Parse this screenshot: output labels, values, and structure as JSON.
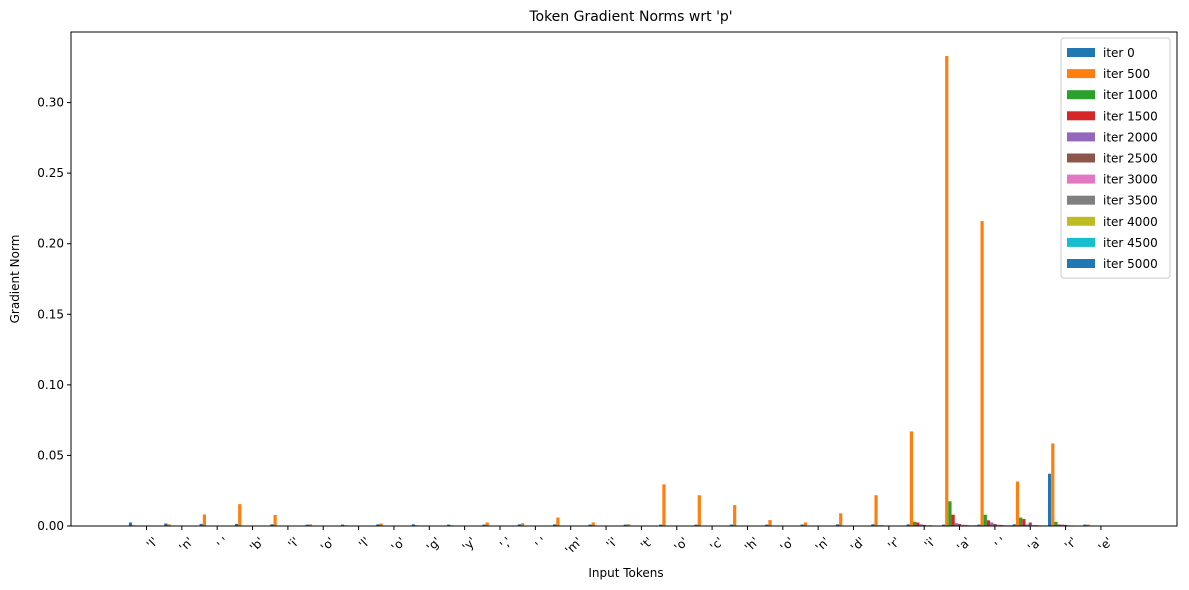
{
  "chart_data": {
    "type": "bar",
    "title": "Token Gradient Norms wrt 'p'",
    "xlabel": "Input Tokens",
    "ylabel": "Gradient Norm",
    "ylim": [
      0,
      0.35
    ],
    "yticks": [
      0.0,
      0.05,
      0.1,
      0.15,
      0.2,
      0.25,
      0.3
    ],
    "ytick_labels": [
      "0.00",
      "0.05",
      "0.10",
      "0.15",
      "0.20",
      "0.25",
      "0.30"
    ],
    "grid": false,
    "legend_position": "top-right",
    "categories": [
      "'I'",
      "'n'",
      "' '",
      "'b'",
      "'i'",
      "'o'",
      "'l'",
      "'o'",
      "'g'",
      "'y'",
      "','",
      "' '",
      "'m'",
      "'i'",
      "'t'",
      "'o'",
      "'c'",
      "'h'",
      "'o'",
      "'n'",
      "'d'",
      "'r'",
      "'i'",
      "'a'",
      "' '",
      "'a'",
      "'r'",
      "'e'"
    ],
    "series": [
      {
        "name": "iter 0",
        "color": "#1f77b4",
        "values": [
          0.0025,
          0.0018,
          0.0015,
          0.0015,
          0.0012,
          0.001,
          0.001,
          0.0012,
          0.0012,
          0.001,
          0.001,
          0.0012,
          0.0012,
          0.001,
          0.001,
          0.001,
          0.001,
          0.001,
          0.001,
          0.001,
          0.0012,
          0.0012,
          0.0012,
          0.001,
          0.001,
          0.0012,
          0.037,
          0.001
        ]
      },
      {
        "name": "iter 500",
        "color": "#ff7f0e",
        "values": [
          0.0005,
          0.0012,
          0.0082,
          0.0155,
          0.0078,
          0.0012,
          0.0005,
          0.0018,
          0.0005,
          0.0005,
          0.0025,
          0.002,
          0.006,
          0.0025,
          0.0012,
          0.0295,
          0.0218,
          0.0148,
          0.0042,
          0.0025,
          0.009,
          0.0218,
          0.067,
          0.333,
          0.216,
          0.0315,
          0.0585,
          0.001
        ]
      },
      {
        "name": "iter 1000",
        "color": "#2ca02c",
        "values": [
          0.0002,
          0.0002,
          0.0002,
          0.0002,
          0.0002,
          0.0002,
          0.0002,
          0.0002,
          0.0002,
          0.0002,
          0.0002,
          0.0002,
          0.0002,
          0.0002,
          0.0002,
          0.0002,
          0.0002,
          0.0002,
          0.0002,
          0.0002,
          0.0002,
          0.0005,
          0.003,
          0.0175,
          0.008,
          0.006,
          0.003,
          0.0002
        ]
      },
      {
        "name": "iter 1500",
        "color": "#d62728",
        "values": [
          0.0001,
          0.0001,
          0.0001,
          0.0001,
          0.0001,
          0.0001,
          0.0001,
          0.0001,
          0.0001,
          0.0001,
          0.0001,
          0.0001,
          0.0001,
          0.0001,
          0.0001,
          0.0001,
          0.0001,
          0.0001,
          0.0001,
          0.0001,
          0.0001,
          0.0005,
          0.0025,
          0.008,
          0.004,
          0.005,
          0.001,
          0.0001
        ]
      },
      {
        "name": "iter 2000",
        "color": "#9467bd",
        "values": [
          0.0001,
          0.0001,
          0.0001,
          0.0001,
          0.0001,
          0.0001,
          0.0001,
          0.0001,
          0.0001,
          0.0001,
          0.0001,
          0.0001,
          0.0001,
          0.0001,
          0.0001,
          0.0001,
          0.0001,
          0.0001,
          0.0001,
          0.0001,
          0.0001,
          0.0003,
          0.0012,
          0.002,
          0.0025,
          0.001,
          0.001,
          0.0001
        ]
      },
      {
        "name": "iter 2500",
        "color": "#8c564b",
        "values": [
          0.0001,
          0.0001,
          0.0001,
          0.0001,
          0.0001,
          0.0001,
          0.0001,
          0.0001,
          0.0001,
          0.0001,
          0.0001,
          0.0001,
          0.0001,
          0.0001,
          0.0001,
          0.0001,
          0.0001,
          0.0001,
          0.0001,
          0.0001,
          0.0001,
          0.0002,
          0.0008,
          0.0015,
          0.0015,
          0.0025,
          0.0008,
          0.0001
        ]
      },
      {
        "name": "iter 3000",
        "color": "#e377c2",
        "values": [
          0.0001,
          0.0001,
          0.0001,
          0.0001,
          0.0001,
          0.0001,
          0.0001,
          0.0001,
          0.0001,
          0.0001,
          0.0001,
          0.0001,
          0.0001,
          0.0001,
          0.0001,
          0.0001,
          0.0001,
          0.0001,
          0.0001,
          0.0001,
          0.0001,
          0.0002,
          0.0005,
          0.001,
          0.001,
          0.0008,
          0.0005,
          0.0001
        ]
      },
      {
        "name": "iter 3500",
        "color": "#7f7f7f",
        "values": [
          0.0001,
          0.0001,
          0.0001,
          0.0001,
          0.0001,
          0.0001,
          0.0001,
          0.0001,
          0.0001,
          0.0001,
          0.0001,
          0.0001,
          0.0001,
          0.0001,
          0.0001,
          0.0001,
          0.0001,
          0.0001,
          0.0001,
          0.0001,
          0.0001,
          0.0002,
          0.0005,
          0.0008,
          0.0008,
          0.0006,
          0.0004,
          0.0001
        ]
      },
      {
        "name": "iter 4000",
        "color": "#bcbd22",
        "values": [
          0.0001,
          0.0001,
          0.0001,
          0.0001,
          0.0001,
          0.0001,
          0.0001,
          0.0001,
          0.0001,
          0.0001,
          0.0001,
          0.0001,
          0.0001,
          0.0001,
          0.0001,
          0.0001,
          0.0001,
          0.0001,
          0.0001,
          0.0001,
          0.0001,
          0.0001,
          0.0004,
          0.0006,
          0.0006,
          0.0005,
          0.0003,
          0.0001
        ]
      },
      {
        "name": "iter 4500",
        "color": "#17becf",
        "values": [
          0.0001,
          0.0001,
          0.0001,
          0.0001,
          0.0001,
          0.0001,
          0.0001,
          0.0001,
          0.0001,
          0.0001,
          0.0001,
          0.0001,
          0.0001,
          0.0001,
          0.0001,
          0.0001,
          0.0001,
          0.0001,
          0.0001,
          0.0001,
          0.0001,
          0.0001,
          0.0003,
          0.0005,
          0.0005,
          0.0004,
          0.0003,
          0.0001
        ]
      },
      {
        "name": "iter 5000",
        "color": "#1f77b4",
        "values": [
          0.0001,
          0.0001,
          0.0001,
          0.0001,
          0.0001,
          0.0001,
          0.0001,
          0.0001,
          0.0001,
          0.0001,
          0.0001,
          0.0001,
          0.0001,
          0.0001,
          0.0001,
          0.0001,
          0.0001,
          0.0001,
          0.0001,
          0.0001,
          0.0001,
          0.0001,
          0.0003,
          0.0005,
          0.0005,
          0.0004,
          0.0003,
          0.0001
        ]
      }
    ]
  }
}
